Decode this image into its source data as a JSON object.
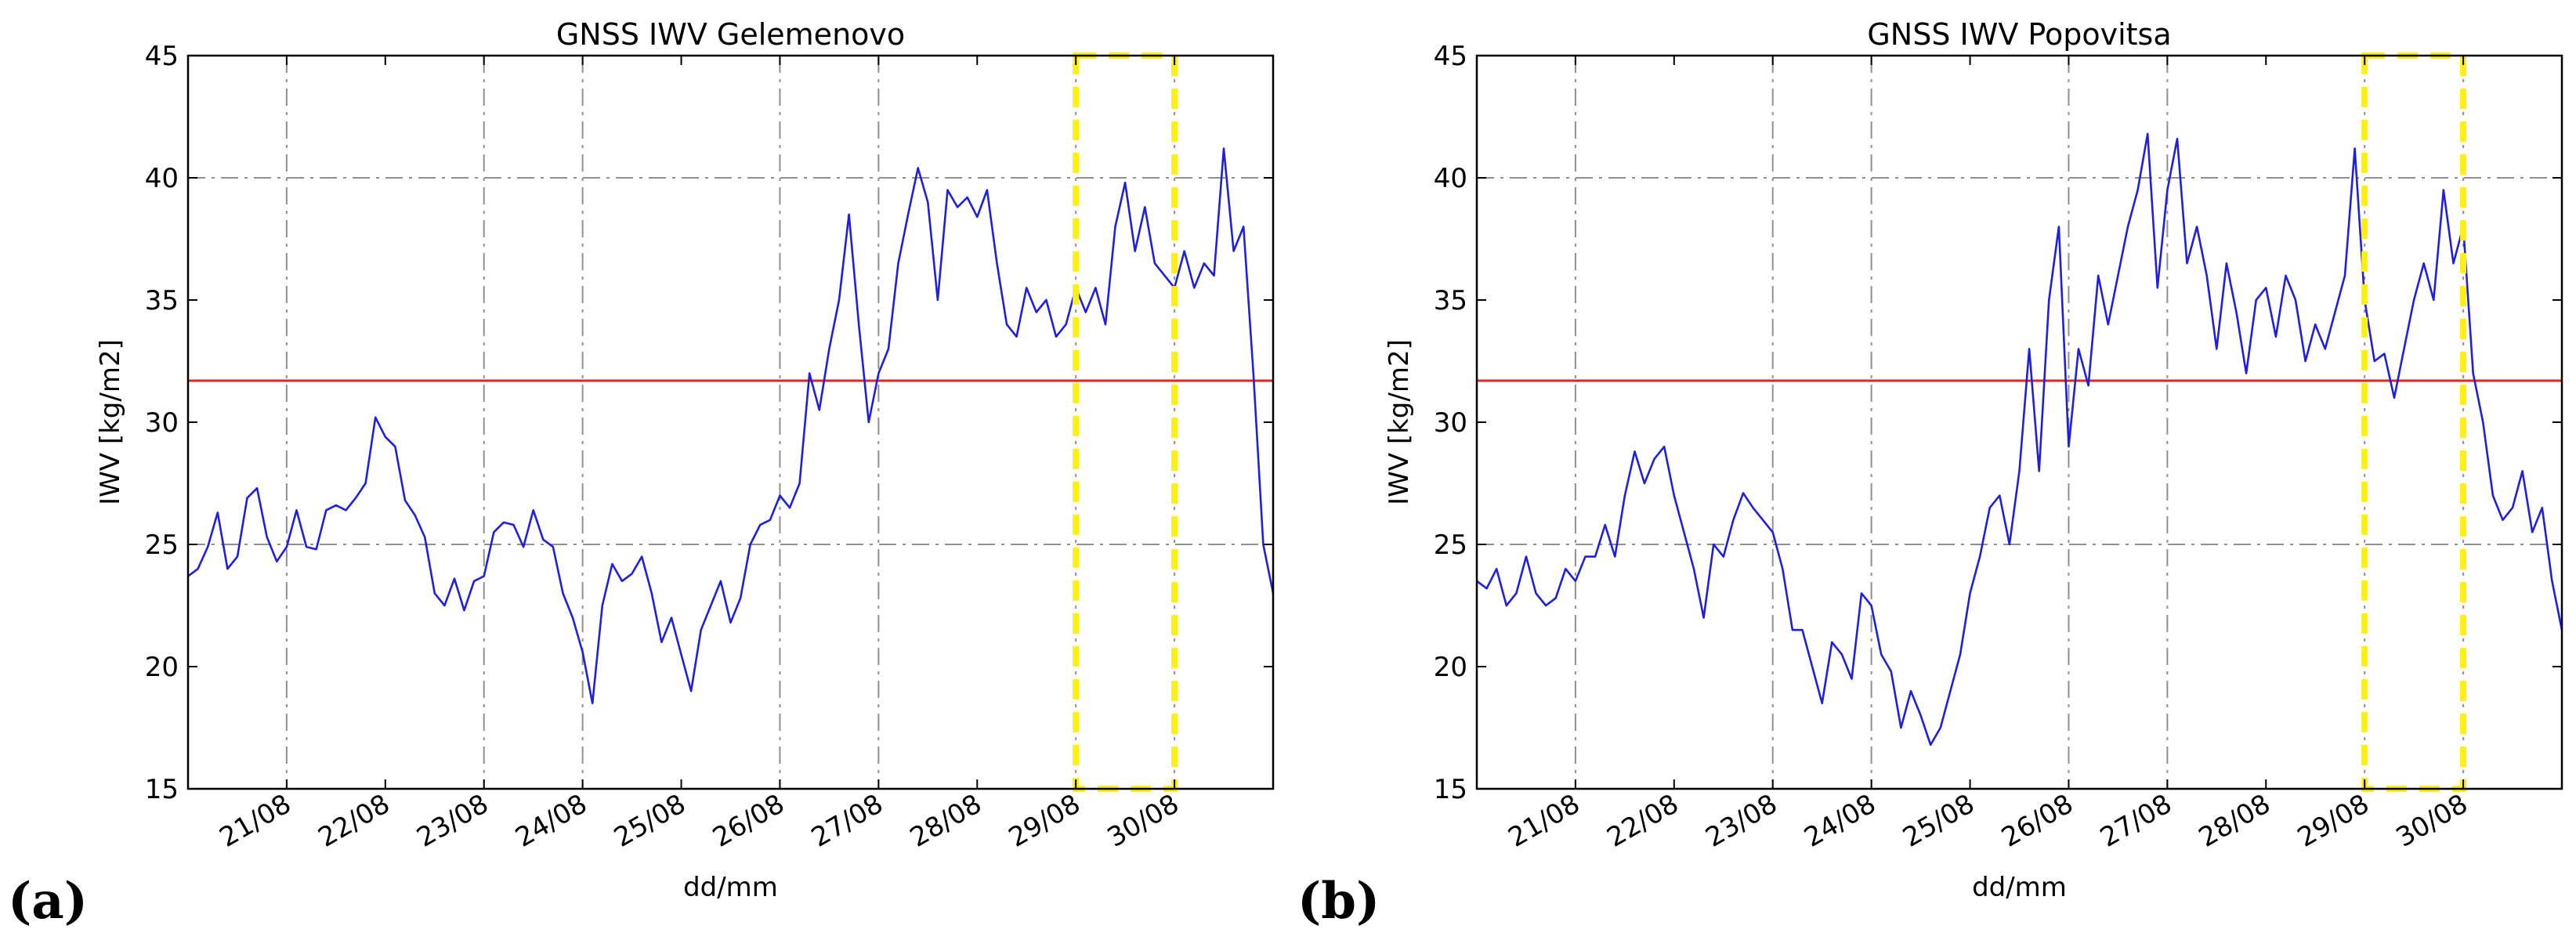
{
  "figure": {
    "panel_labels": [
      "(a)",
      "(b)"
    ]
  },
  "chart_data": [
    {
      "type": "line",
      "title": "GNSS IWV Gelemenovo",
      "xlabel": "dd/mm",
      "ylabel": "IWV [kg/m2]",
      "xlim": [
        20.0,
        31.0
      ],
      "ylim": [
        15,
        45
      ],
      "yticks": [
        15,
        20,
        25,
        30,
        35,
        40,
        45
      ],
      "xtick_positions": [
        21,
        22,
        23,
        24,
        25,
        26,
        27,
        28,
        29,
        30
      ],
      "xtick_labels": [
        "21/08",
        "22/08",
        "23/08",
        "24/08",
        "25/08",
        "26/08",
        "27/08",
        "28/08",
        "29/08",
        "30/08"
      ],
      "vgrid_positions": [
        21,
        23,
        24,
        26,
        27,
        29,
        30
      ],
      "hgrid_values": [
        25,
        40
      ],
      "threshold": {
        "value": 31.7,
        "color": "#e8231d"
      },
      "highlight": {
        "x_start": 29.0,
        "x_end": 30.0,
        "y_start": 15,
        "y_end": 45,
        "color": "#ffef12"
      },
      "series": [
        {
          "name": "IWV",
          "color": "#1f1fe0",
          "x": [
            20.0,
            20.1,
            20.2,
            20.3,
            20.4,
            20.5,
            20.6,
            20.7,
            20.8,
            20.9,
            21.0,
            21.1,
            21.2,
            21.3,
            21.4,
            21.5,
            21.6,
            21.7,
            21.8,
            21.9,
            22.0,
            22.1,
            22.2,
            22.3,
            22.4,
            22.5,
            22.6,
            22.7,
            22.8,
            22.9,
            23.0,
            23.1,
            23.2,
            23.3,
            23.4,
            23.5,
            23.6,
            23.7,
            23.8,
            23.9,
            24.0,
            24.1,
            24.2,
            24.3,
            24.4,
            24.5,
            24.6,
            24.7,
            24.8,
            24.9,
            25.0,
            25.1,
            25.2,
            25.3,
            25.4,
            25.5,
            25.6,
            25.7,
            25.8,
            25.9,
            26.0,
            26.1,
            26.2,
            26.3,
            26.4,
            26.5,
            26.6,
            26.7,
            26.8,
            26.9,
            27.0,
            27.1,
            27.2,
            27.3,
            27.4,
            27.5,
            27.6,
            27.7,
            27.8,
            27.9,
            28.0,
            28.1,
            28.2,
            28.3,
            28.4,
            28.5,
            28.6,
            28.7,
            28.8,
            28.9,
            29.0,
            29.1,
            29.2,
            29.3,
            29.4,
            29.5,
            29.6,
            29.7,
            29.8,
            29.9,
            30.0,
            30.1,
            30.2,
            30.3,
            30.4,
            30.5,
            30.6,
            30.7,
            30.8,
            30.9,
            31.0
          ],
          "y": [
            23.7,
            24.0,
            24.9,
            26.3,
            24.0,
            24.5,
            26.9,
            27.3,
            25.3,
            24.3,
            24.9,
            26.4,
            24.9,
            24.8,
            26.4,
            26.6,
            26.4,
            26.9,
            27.5,
            30.2,
            29.4,
            29.0,
            26.8,
            26.2,
            25.3,
            23.0,
            22.5,
            23.6,
            22.3,
            23.5,
            23.7,
            25.5,
            25.9,
            25.8,
            24.9,
            26.4,
            25.2,
            24.9,
            23.0,
            22.0,
            20.6,
            18.5,
            22.5,
            24.2,
            23.5,
            23.8,
            24.5,
            23.0,
            21.0,
            22.0,
            20.5,
            19.0,
            21.5,
            22.5,
            23.5,
            21.8,
            22.8,
            25.0,
            25.8,
            26.0,
            27.0,
            26.5,
            27.5,
            32.0,
            30.5,
            33.0,
            35.0,
            38.5,
            34.0,
            30.0,
            32.0,
            33.0,
            36.5,
            38.5,
            40.4,
            39.0,
            35.0,
            39.5,
            38.8,
            39.2,
            38.4,
            39.5,
            36.5,
            34.0,
            33.5,
            35.5,
            34.5,
            35.0,
            33.5,
            34.0,
            35.5,
            34.5,
            35.5,
            34.0,
            38.0,
            39.8,
            37.0,
            38.8,
            36.5,
            36.0,
            35.5,
            37.0,
            35.5,
            36.5,
            36.0,
            41.2,
            37.0,
            38.0,
            32.0,
            25.0,
            23.0
          ]
        }
      ]
    },
    {
      "type": "line",
      "title": "GNSS IWV Popovitsa",
      "xlabel": "dd/mm",
      "ylabel": "IWV [kg/m2]",
      "xlim": [
        20.0,
        31.0
      ],
      "ylim": [
        15,
        45
      ],
      "yticks": [
        15,
        20,
        25,
        30,
        35,
        40,
        45
      ],
      "xtick_positions": [
        21,
        22,
        23,
        24,
        25,
        26,
        27,
        28,
        29,
        30
      ],
      "xtick_labels": [
        "21/08",
        "22/08",
        "23/08",
        "24/08",
        "25/08",
        "26/08",
        "27/08",
        "28/08",
        "29/08",
        "30/08"
      ],
      "vgrid_positions": [
        21,
        23,
        24,
        26,
        27,
        29,
        30
      ],
      "hgrid_values": [
        25,
        40
      ],
      "threshold": {
        "value": 31.7,
        "color": "#e8231d"
      },
      "highlight": {
        "x_start": 29.0,
        "x_end": 30.0,
        "y_start": 15,
        "y_end": 45,
        "color": "#ffef12"
      },
      "series": [
        {
          "name": "IWV",
          "color": "#1f1fe0",
          "x": [
            20.0,
            20.1,
            20.2,
            20.3,
            20.4,
            20.5,
            20.6,
            20.7,
            20.8,
            20.9,
            21.0,
            21.1,
            21.2,
            21.3,
            21.4,
            21.5,
            21.6,
            21.7,
            21.8,
            21.9,
            22.0,
            22.1,
            22.2,
            22.3,
            22.4,
            22.5,
            22.6,
            22.7,
            22.8,
            22.9,
            23.0,
            23.1,
            23.2,
            23.3,
            23.4,
            23.5,
            23.6,
            23.7,
            23.8,
            23.9,
            24.0,
            24.1,
            24.2,
            24.3,
            24.4,
            24.5,
            24.6,
            24.7,
            24.8,
            24.9,
            25.0,
            25.1,
            25.2,
            25.3,
            25.4,
            25.5,
            25.6,
            25.7,
            25.8,
            25.9,
            26.0,
            26.1,
            26.2,
            26.3,
            26.4,
            26.5,
            26.6,
            26.7,
            26.8,
            26.9,
            27.0,
            27.1,
            27.2,
            27.3,
            27.4,
            27.5,
            27.6,
            27.7,
            27.8,
            27.9,
            28.0,
            28.1,
            28.2,
            28.3,
            28.4,
            28.5,
            28.6,
            28.7,
            28.8,
            28.9,
            29.0,
            29.1,
            29.2,
            29.3,
            29.4,
            29.5,
            29.6,
            29.7,
            29.8,
            29.9,
            30.0,
            30.1,
            30.2,
            30.3,
            30.4,
            30.5,
            30.6,
            30.7,
            30.8,
            30.9,
            31.0
          ],
          "y": [
            23.5,
            23.2,
            24.0,
            22.5,
            23.0,
            24.5,
            23.0,
            22.5,
            22.8,
            24.0,
            23.5,
            24.5,
            24.5,
            25.8,
            24.5,
            27.0,
            28.8,
            27.5,
            28.5,
            29.0,
            27.0,
            25.5,
            24.0,
            22.0,
            25.0,
            24.5,
            26.0,
            27.1,
            26.5,
            26.0,
            25.5,
            24.0,
            21.5,
            21.5,
            20.0,
            18.5,
            21.0,
            20.5,
            19.5,
            23.0,
            22.5,
            20.5,
            19.8,
            17.5,
            19.0,
            18.0,
            16.8,
            17.5,
            19.0,
            20.5,
            23.0,
            24.5,
            26.5,
            27.0,
            25.0,
            28.0,
            33.0,
            28.0,
            35.0,
            38.0,
            29.0,
            33.0,
            31.5,
            36.0,
            34.0,
            36.0,
            38.0,
            39.5,
            41.8,
            35.5,
            39.5,
            41.6,
            36.5,
            38.0,
            36.0,
            33.0,
            36.5,
            34.5,
            32.0,
            35.0,
            35.5,
            33.5,
            36.0,
            35.0,
            32.5,
            34.0,
            33.0,
            34.5,
            36.0,
            41.2,
            35.0,
            32.5,
            32.8,
            31.0,
            33.0,
            35.0,
            36.5,
            35.0,
            39.5,
            36.5,
            38.0,
            32.0,
            30.0,
            27.0,
            26.0,
            26.5,
            28.0,
            25.5,
            26.5,
            23.5,
            21.5
          ]
        }
      ]
    }
  ]
}
